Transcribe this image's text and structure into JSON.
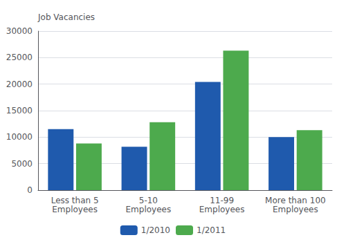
{
  "chart_data": {
    "type": "bar",
    "ylabel": "Job Vacancies",
    "categories": [
      "Less than 5\nEmployees",
      "5-10\nEmployees",
      "11-99\nEmployees",
      "More than 100\nEmployees"
    ],
    "series": [
      {
        "name": "1/2010",
        "color": "#1f5aad",
        "values": [
          11500,
          8200,
          20400,
          10000
        ]
      },
      {
        "name": "1/2011",
        "color": "#4daa4d",
        "values": [
          8800,
          12800,
          26300,
          11300
        ]
      }
    ],
    "ylim": [
      0,
      30000
    ],
    "yticks": [
      0,
      5000,
      10000,
      15000,
      20000,
      25000,
      30000
    ],
    "grid": true,
    "legend": "bottom"
  }
}
